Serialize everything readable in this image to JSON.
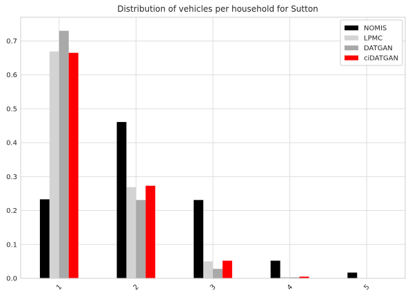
{
  "chart_data": {
    "type": "bar",
    "title": "Distribution of vehicles per household for Sutton",
    "xlabel": "",
    "ylabel": "",
    "categories": [
      "1",
      "2",
      "3",
      "4",
      "5"
    ],
    "ylim": [
      0,
      0.77
    ],
    "yticks": [
      "0.0",
      "0.1",
      "0.2",
      "0.3",
      "0.4",
      "0.5",
      "0.6",
      "0.7"
    ],
    "grid": true,
    "legend_position": "top-right",
    "series": [
      {
        "name": "NOMIS",
        "color": "#000000",
        "values": [
          0.233,
          0.461,
          0.231,
          0.052,
          0.017
        ]
      },
      {
        "name": "LPMC",
        "color": "#d3d3d3",
        "values": [
          0.669,
          0.269,
          0.05,
          0.004,
          0.0
        ]
      },
      {
        "name": "DATGAN",
        "color": "#a9a9a9",
        "values": [
          0.73,
          0.231,
          0.028,
          0.003,
          0.0
        ]
      },
      {
        "name": "ciDATGAN",
        "color": "#ff0000",
        "values": [
          0.665,
          0.273,
          0.052,
          0.005,
          0.0
        ]
      }
    ]
  }
}
